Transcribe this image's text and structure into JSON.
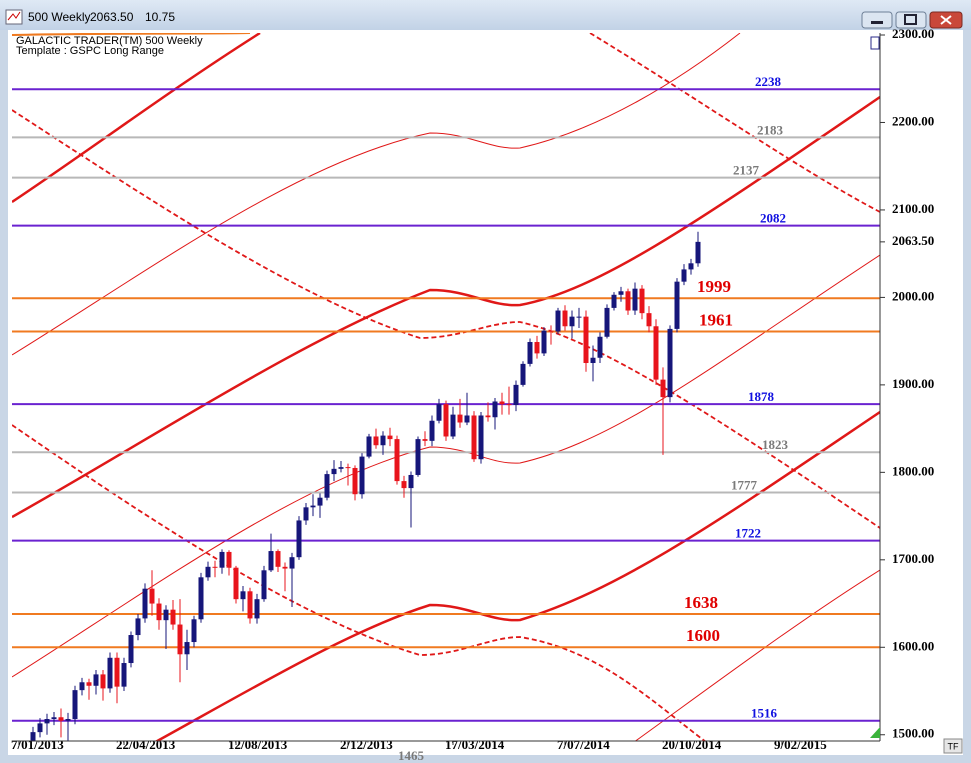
{
  "window": {
    "title": "500 Weekly",
    "change": "10.75"
  },
  "chart_data": {
    "type": "candlestick",
    "header": "GALACTIC TRADER(TM)   500 Weekly",
    "template": "Template : GSPC Long Range",
    "x": [
      "7/01/2013",
      "14/01/2013",
      "21/01/2013",
      "28/01/2013",
      "4/02/2013",
      "11/02/2013",
      "18/02/2013",
      "25/02/2013",
      "4/03/2013",
      "11/03/2013",
      "18/03/2013",
      "25/03/2013",
      "1/04/2013",
      "8/04/2013",
      "15/04/2013",
      "22/04/2013",
      "29/04/2013",
      "6/05/2013",
      "13/05/2013",
      "20/05/2013",
      "27/05/2013",
      "3/06/2013",
      "10/06/2013",
      "17/06/2013",
      "24/06/2013",
      "1/07/2013",
      "8/07/2013",
      "15/07/2013",
      "22/07/2013",
      "29/07/2013",
      "5/08/2013",
      "12/08/2013",
      "19/08/2013",
      "26/08/2013",
      "2/09/2013",
      "9/09/2013",
      "16/09/2013",
      "23/09/2013",
      "30/09/2013",
      "7/10/2013",
      "14/10/2013",
      "21/10/2013",
      "28/10/2013",
      "4/11/2013",
      "11/11/2013",
      "18/11/2013",
      "25/11/2013",
      "2/12/2013",
      "9/12/2013",
      "16/12/2013",
      "23/12/2013",
      "30/12/2013",
      "6/01/2014",
      "13/01/2014",
      "20/01/2014",
      "27/01/2014",
      "3/02/2014",
      "10/02/2014",
      "17/02/2014",
      "24/02/2014",
      "3/03/2014",
      "10/03/2014",
      "17/03/2014",
      "24/03/2014",
      "31/03/2014",
      "7/04/2014",
      "14/04/2014",
      "21/04/2014",
      "28/04/2014",
      "5/05/2014",
      "12/05/2014",
      "19/05/2014",
      "26/05/2014",
      "2/06/2014",
      "9/06/2014",
      "16/06/2014",
      "23/06/2014",
      "30/06/2014",
      "7/07/2014",
      "14/07/2014",
      "21/07/2014",
      "28/07/2014",
      "4/08/2014",
      "11/08/2014",
      "18/08/2014",
      "25/08/2014",
      "1/09/2014",
      "8/09/2014",
      "15/09/2014",
      "22/09/2014",
      "29/09/2014",
      "6/10/2014",
      "13/10/2014",
      "20/10/2014",
      "27/10/2014",
      "3/11/2014",
      "10/11/2014",
      "17/11/2014"
    ],
    "open": [
      1462,
      1472,
      1486,
      1503,
      1513,
      1518,
      1520,
      1516,
      1518,
      1551,
      1560,
      1556,
      1569,
      1553,
      1588,
      1555,
      1582,
      1614,
      1633,
      1667,
      1650,
      1631,
      1643,
      1626,
      1592,
      1606,
      1632,
      1680,
      1692,
      1691,
      1709,
      1691,
      1655,
      1664,
      1633,
      1655,
      1688,
      1710,
      1692,
      1690,
      1703,
      1745,
      1760,
      1762,
      1771,
      1798,
      1804,
      1806,
      1805,
      1775,
      1818,
      1841,
      1831,
      1842,
      1838,
      1790,
      1782,
      1797,
      1838,
      1836,
      1859,
      1878,
      1841,
      1866,
      1857,
      1865,
      1815,
      1865,
      1863,
      1881,
      1878,
      1877,
      1900,
      1924,
      1949,
      1936,
      1962,
      1961,
      1985,
      1967,
      1978,
      1978,
      1925,
      1931,
      1955,
      1988,
      2003,
      2007,
      1985,
      2010,
      1982,
      1967,
      1906,
      1886,
      1964,
      2018,
      2032,
      2039
    ],
    "high": [
      1478,
      1492,
      1509,
      1519,
      1524,
      1526,
      1530,
      1525,
      1556,
      1565,
      1564,
      1574,
      1574,
      1594,
      1594,
      1588,
      1618,
      1638,
      1673,
      1688,
      1656,
      1648,
      1654,
      1655,
      1620,
      1636,
      1685,
      1698,
      1699,
      1712,
      1711,
      1693,
      1670,
      1668,
      1661,
      1693,
      1730,
      1712,
      1697,
      1708,
      1750,
      1765,
      1775,
      1776,
      1802,
      1814,
      1813,
      1810,
      1808,
      1822,
      1844,
      1850,
      1847,
      1851,
      1842,
      1796,
      1801,
      1841,
      1847,
      1865,
      1884,
      1882,
      1875,
      1884,
      1891,
      1870,
      1869,
      1880,
      1885,
      1891,
      1898,
      1905,
      1927,
      1953,
      1956,
      1966,
      1968,
      1988,
      1991,
      1985,
      1988,
      1985,
      1945,
      1960,
      1992,
      2006,
      2012,
      2010,
      2017,
      2014,
      1990,
      1975,
      1920,
      1968,
      2022,
      2038,
      2044,
      2075
    ],
    "low": [
      1455,
      1466,
      1480,
      1497,
      1500,
      1511,
      1497,
      1485,
      1512,
      1545,
      1540,
      1546,
      1539,
      1548,
      1536,
      1550,
      1577,
      1608,
      1628,
      1636,
      1620,
      1598,
      1620,
      1560,
      1574,
      1600,
      1628,
      1676,
      1680,
      1684,
      1682,
      1650,
      1641,
      1627,
      1627,
      1652,
      1686,
      1686,
      1664,
      1646,
      1700,
      1740,
      1750,
      1748,
      1768,
      1790,
      1800,
      1785,
      1768,
      1770,
      1816,
      1827,
      1820,
      1830,
      1786,
      1771,
      1737,
      1795,
      1830,
      1830,
      1856,
      1836,
      1838,
      1851,
      1854,
      1812,
      1810,
      1858,
      1849,
      1866,
      1866,
      1870,
      1898,
      1921,
      1930,
      1933,
      1946,
      1958,
      1962,
      1953,
      1965,
      1915,
      1904,
      1925,
      1953,
      1985,
      1995,
      1980,
      1980,
      1975,
      1960,
      1900,
      1820,
      1880,
      1960,
      2014,
      2026,
      2035
    ],
    "close": [
      1472,
      1486,
      1503,
      1513,
      1518,
      1520,
      1516,
      1518,
      1551,
      1560,
      1556,
      1569,
      1553,
      1588,
      1555,
      1582,
      1614,
      1633,
      1667,
      1650,
      1631,
      1643,
      1626,
      1592,
      1606,
      1632,
      1680,
      1692,
      1691,
      1709,
      1691,
      1655,
      1664,
      1633,
      1655,
      1688,
      1710,
      1692,
      1690,
      1703,
      1745,
      1760,
      1762,
      1771,
      1798,
      1804,
      1806,
      1805,
      1775,
      1818,
      1841,
      1831,
      1842,
      1838,
      1790,
      1782,
      1797,
      1838,
      1836,
      1859,
      1878,
      1841,
      1866,
      1857,
      1865,
      1815,
      1865,
      1863,
      1881,
      1878,
      1877,
      1900,
      1924,
      1949,
      1936,
      1962,
      1961,
      1985,
      1967,
      1978,
      1978,
      1925,
      1931,
      1955,
      1988,
      2003,
      2007,
      1985,
      2010,
      1982,
      1967,
      1906,
      1886,
      1964,
      2018,
      2032,
      2039,
      2063.5
    ],
    "up_color": "#16167a",
    "down_color": "#e8141c",
    "xlim": [
      "31/12/2012",
      "18/05/2015"
    ],
    "xticks": [
      "7/01/2013",
      "22/04/2013",
      "12/08/2013",
      "2/12/2013",
      "17/03/2014",
      "7/07/2014",
      "20/10/2014",
      "9/02/2015"
    ],
    "ylim": [
      1494,
      2300
    ],
    "yticks": [
      {
        "value": 2300,
        "label": "2300.00"
      },
      {
        "value": 2200,
        "label": "2200.00"
      },
      {
        "value": 2100,
        "label": "2100.00"
      },
      {
        "value": 2000,
        "label": "2000.00"
      },
      {
        "value": 1900,
        "label": "1900.00"
      },
      {
        "value": 1800,
        "label": "1800.00"
      },
      {
        "value": 1700,
        "label": "1700.00"
      },
      {
        "value": 1600,
        "label": "1600.00"
      },
      {
        "value": 1500,
        "label": "1500.00"
      }
    ],
    "last_price": {
      "value": 2063.5,
      "label": "2063.50"
    },
    "levels": [
      {
        "value": 2238,
        "line_color": "#6a22d0",
        "label_color": "#1010e0"
      },
      {
        "value": 2183,
        "line_color": "#b8b8b8",
        "label_color": "#7a7a7a"
      },
      {
        "value": 2137,
        "line_color": "#b8b8b8",
        "label_color": "#7a7a7a"
      },
      {
        "value": 2082,
        "line_color": "#6a22d0",
        "label_color": "#1010e0"
      },
      {
        "value": 1999,
        "line_color": "#f07a20",
        "label_color": "#e00000"
      },
      {
        "value": 1961,
        "line_color": "#f07a20",
        "label_color": "#e00000"
      },
      {
        "value": 1878,
        "line_color": "#6a22d0",
        "label_color": "#1010e0"
      },
      {
        "value": 1823,
        "line_color": "#b8b8b8",
        "label_color": "#7a7a7a"
      },
      {
        "value": 1777,
        "line_color": "#b8b8b8",
        "label_color": "#7a7a7a"
      },
      {
        "value": 1722,
        "line_color": "#6a22d0",
        "label_color": "#1010e0"
      },
      {
        "value": 1638,
        "line_color": "#f07a20",
        "label_color": "#e00000"
      },
      {
        "value": 1600,
        "line_color": "#f07a20",
        "label_color": "#e00000"
      },
      {
        "value": 1516,
        "line_color": "#6a22d0",
        "label_color": "#1010e0"
      },
      {
        "value": 1465,
        "line_color": "#b8b8b8",
        "label_color": "#7a7a7a"
      }
    ],
    "corner_button": "TF"
  }
}
